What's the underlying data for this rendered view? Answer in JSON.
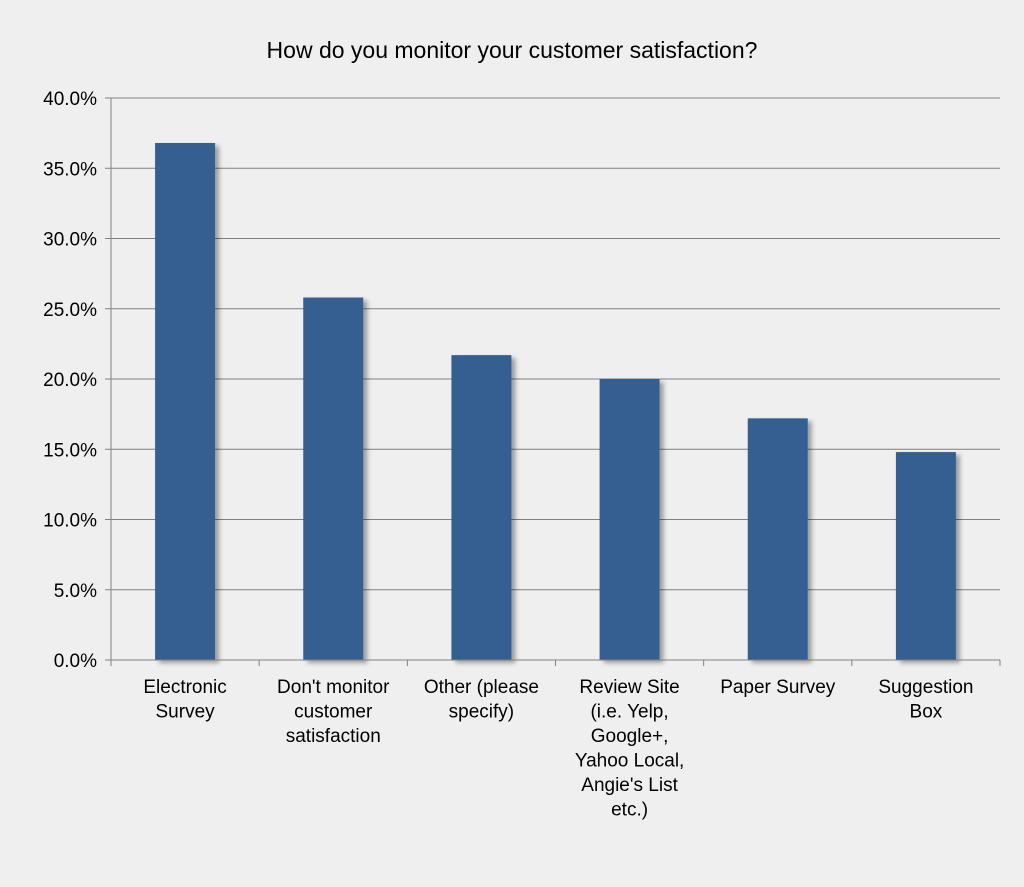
{
  "chart_data": {
    "type": "bar",
    "title": "How do you monitor your customer satisfaction?",
    "xlabel": "",
    "ylabel": "",
    "categories": [
      [
        "Electronic",
        "Survey"
      ],
      [
        "Don't monitor",
        "customer",
        "satisfaction"
      ],
      [
        "Other (please",
        "specify)"
      ],
      [
        "Review Site",
        "(i.e. Yelp,",
        "Google+,",
        "Yahoo Local,",
        "Angie's List",
        "etc.)"
      ],
      [
        "Paper Survey"
      ],
      [
        "Suggestion",
        "Box"
      ]
    ],
    "values": [
      36.8,
      25.8,
      21.7,
      20.0,
      17.2,
      14.8
    ],
    "ylim": [
      0,
      40
    ],
    "yticks": [
      "0.0%",
      "5.0%",
      "10.0%",
      "15.0%",
      "20.0%",
      "25.0%",
      "30.0%",
      "35.0%",
      "40.0%"
    ],
    "grid": true,
    "legend": "none",
    "colors": {
      "bar": "#365f91",
      "grid": "#808080",
      "axis": "#808080",
      "background": "#efefef"
    }
  }
}
